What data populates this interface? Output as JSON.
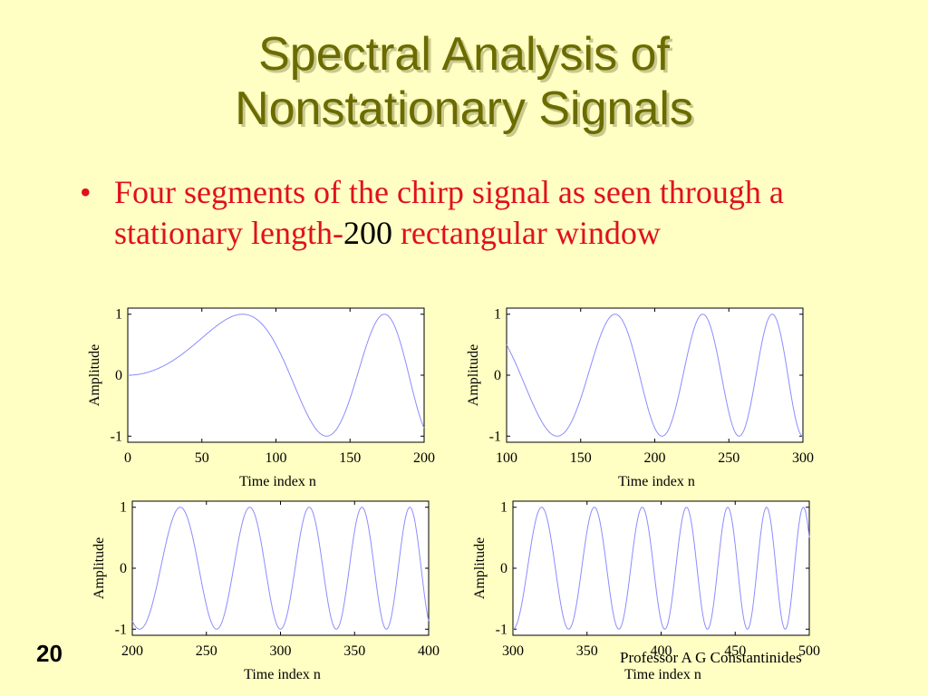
{
  "title_lines": [
    "Spectral Analysis of",
    "Nonstationary Signals"
  ],
  "bullet": {
    "symbol": "•",
    "text_before": "Four segments of the chirp signal as seen through a stationary length-",
    "number": "200",
    "text_after": " rectangular window"
  },
  "slide_number": "20",
  "footer": "Professor A G Constantinides",
  "colors": {
    "background": "#ffffc3",
    "title": "#6b6b00",
    "bullet": "#e0101e",
    "curve": "#8c8cff"
  },
  "chart_data": [
    {
      "type": "line",
      "xlabel": "Time index n",
      "ylabel": "Amplitude",
      "xlim": [
        0,
        200
      ],
      "ylim": [
        -1.1,
        1.1
      ],
      "xticks": [
        "0",
        "50",
        "100",
        "150",
        "200"
      ],
      "yticks": [
        "-1",
        "0",
        "1"
      ],
      "function": "cos(pi*n^2/12000 - pi/2)",
      "n_range": [
        0,
        200
      ]
    },
    {
      "type": "line",
      "xlabel": "Time index n",
      "ylabel": "Amplitude",
      "xlim": [
        100,
        300
      ],
      "ylim": [
        -1.1,
        1.1
      ],
      "xticks": [
        "100",
        "150",
        "200",
        "250",
        "300"
      ],
      "yticks": [
        "-1",
        "0",
        "1"
      ],
      "function": "cos(pi*n^2/12000 - pi/2)",
      "n_range": [
        100,
        300
      ]
    },
    {
      "type": "line",
      "xlabel": "Time index n",
      "ylabel": "Amplitude",
      "xlim": [
        200,
        400
      ],
      "ylim": [
        -1.1,
        1.1
      ],
      "xticks": [
        "200",
        "250",
        "300",
        "350",
        "400"
      ],
      "yticks": [
        "-1",
        "0",
        "1"
      ],
      "function": "cos(pi*n^2/12000 - pi/2)",
      "n_range": [
        200,
        400
      ]
    },
    {
      "type": "line",
      "xlabel": "Time index n",
      "ylabel": "Amplitude",
      "xlim": [
        300,
        500
      ],
      "ylim": [
        -1.1,
        1.1
      ],
      "xticks": [
        "300",
        "350",
        "400",
        "450",
        "500"
      ],
      "yticks": [
        "-1",
        "0",
        "1"
      ],
      "function": "cos(pi*n^2/12000 - pi/2)",
      "n_range": [
        300,
        500
      ]
    }
  ]
}
